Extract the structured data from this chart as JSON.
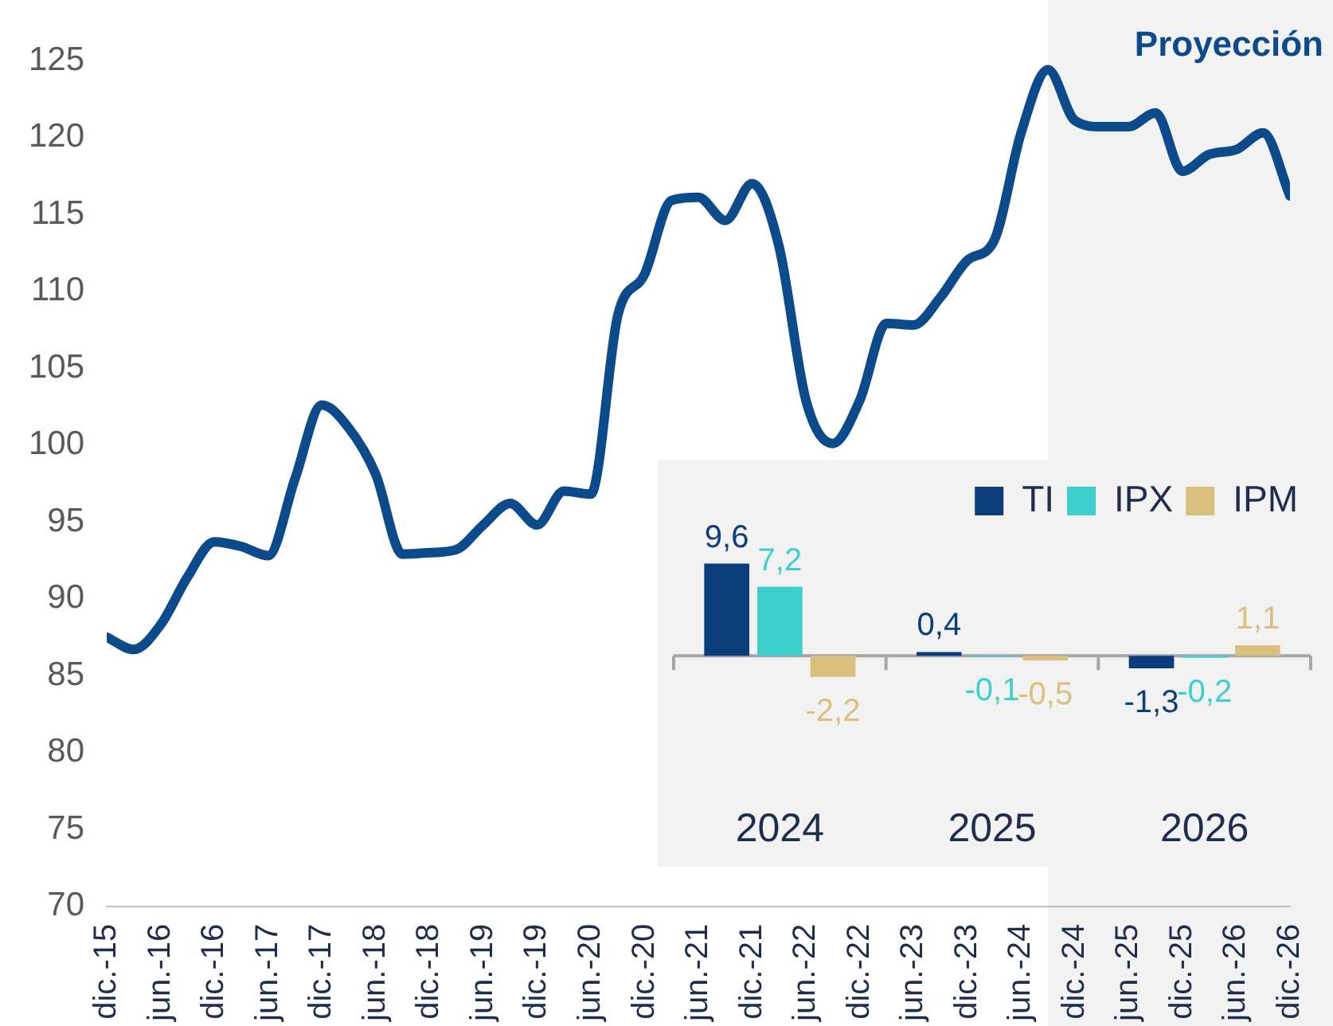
{
  "chart_data": [
    {
      "type": "line",
      "x": [
        "2015-12",
        "2016-03",
        "2016-06",
        "2016-09",
        "2016-12",
        "2017-03",
        "2017-06",
        "2017-09",
        "2017-12",
        "2018-03",
        "2018-06",
        "2018-09",
        "2018-12",
        "2019-03",
        "2019-06",
        "2019-09",
        "2019-12",
        "2020-03",
        "2020-06",
        "2020-09",
        "2020-12",
        "2021-03",
        "2021-06",
        "2021-09",
        "2021-12",
        "2022-03",
        "2022-06",
        "2022-09",
        "2022-12",
        "2023-03",
        "2023-06",
        "2023-09",
        "2023-12",
        "2024-03",
        "2024-06",
        "2024-09",
        "2024-12",
        "2025-03",
        "2025-06",
        "2025-09",
        "2025-12",
        "2026-03",
        "2026-06",
        "2026-09",
        "2026-12"
      ],
      "series": [
        {
          "color": "#0b4a8b",
          "values": [
            87.5,
            86.7,
            88.3,
            91.4,
            93.7,
            93.4,
            92.8,
            97.8,
            102.6,
            101.1,
            98.1,
            92.9,
            93.0,
            93.2,
            94.8,
            96.2,
            94.8,
            97.0,
            96.8,
            108.4,
            111.1,
            115.9,
            116.1,
            114.6,
            117.0,
            112.9,
            102.9,
            100.1,
            102.9,
            107.9,
            107.8,
            109.6,
            112.0,
            113.3,
            120.3,
            124.4,
            121.1,
            120.7,
            120.7,
            121.6,
            117.8,
            118.9,
            119.2,
            120.3,
            116.2
          ]
        }
      ],
      "xlim": [
        "2015-12",
        "2026-12"
      ],
      "xticks": [
        {
          "value": "2015-12",
          "label": "dic.-15"
        },
        {
          "value": "2016-06",
          "label": "jun.-16"
        },
        {
          "value": "2016-12",
          "label": "dic.-16"
        },
        {
          "value": "2017-06",
          "label": "jun.-17"
        },
        {
          "value": "2017-12",
          "label": "dic.-17"
        },
        {
          "value": "2018-06",
          "label": "jun.-18"
        },
        {
          "value": "2018-12",
          "label": "dic.-18"
        },
        {
          "value": "2019-06",
          "label": "jun.-19"
        },
        {
          "value": "2019-12",
          "label": "dic.-19"
        },
        {
          "value": "2020-06",
          "label": "jun.-20"
        },
        {
          "value": "2020-12",
          "label": "dic.-20"
        },
        {
          "value": "2021-06",
          "label": "jun.-21"
        },
        {
          "value": "2021-12",
          "label": "dic.-21"
        },
        {
          "value": "2022-06",
          "label": "jun.-22"
        },
        {
          "value": "2022-12",
          "label": "dic.-22"
        },
        {
          "value": "2023-06",
          "label": "jun.-23"
        },
        {
          "value": "2023-12",
          "label": "dic.-23"
        },
        {
          "value": "2024-06",
          "label": "jun.-24"
        },
        {
          "value": "2024-12",
          "label": "dic.-24"
        },
        {
          "value": "2025-06",
          "label": "jun.-25"
        },
        {
          "value": "2025-12",
          "label": "dic.-25"
        },
        {
          "value": "2026-06",
          "label": "jun.-26"
        },
        {
          "value": "2026-12",
          "label": "dic.-26"
        }
      ],
      "ylim": [
        70,
        125
      ],
      "yticks": [
        70,
        75,
        80,
        85,
        90,
        95,
        100,
        105,
        110,
        115,
        120,
        125
      ],
      "bands": [
        {
          "axis": "x",
          "from": "2024-09",
          "to": "2026-12",
          "label": "Proyección",
          "color": "#f2f2f2"
        }
      ],
      "marker": "none",
      "grid": false,
      "legend": false
    },
    {
      "type": "bar",
      "categories": [
        "2024",
        "2025",
        "2026"
      ],
      "series": [
        {
          "name": "TI",
          "color": "#0b3c7c",
          "values": [
            9.6,
            0.4,
            -1.3
          ],
          "value_labels": [
            "9,6",
            "0,4",
            "-1,3"
          ]
        },
        {
          "name": "IPX",
          "color": "#3ccfcc",
          "values": [
            7.2,
            -0.1,
            -0.2
          ],
          "value_labels": [
            "7,2",
            "-0,1",
            "-0,2"
          ]
        },
        {
          "name": "IPM",
          "color": "#d9c07f",
          "values": [
            -2.2,
            -0.5,
            1.1
          ],
          "value_labels": [
            "-2,2",
            "-0,5",
            "1,1"
          ]
        }
      ],
      "legend": "top right"
    }
  ]
}
